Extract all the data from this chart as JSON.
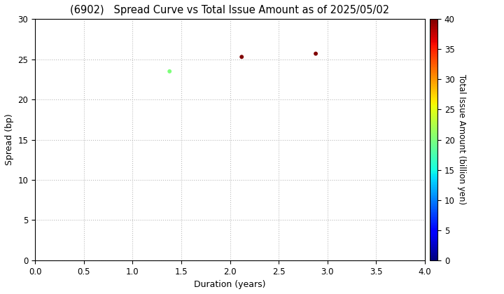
{
  "title": "(6902)   Spread Curve vs Total Issue Amount as of 2025/05/02",
  "xlabel": "Duration (years)",
  "ylabel": "Spread (bp)",
  "colorbar_label": "Total Issue Amount (billion yen)",
  "xlim": [
    0.0,
    4.0
  ],
  "ylim": [
    0,
    30
  ],
  "xticks": [
    0.0,
    0.5,
    1.0,
    1.5,
    2.0,
    2.5,
    3.0,
    3.5,
    4.0
  ],
  "yticks": [
    0,
    5,
    10,
    15,
    20,
    25,
    30
  ],
  "colorbar_min": 0,
  "colorbar_max": 40,
  "colorbar_ticks": [
    0,
    5,
    10,
    15,
    20,
    25,
    30,
    35,
    40
  ],
  "points": [
    {
      "duration": 1.38,
      "spread": 23.5,
      "amount": 20
    },
    {
      "duration": 2.12,
      "spread": 25.3,
      "amount": 40
    },
    {
      "duration": 2.88,
      "spread": 25.7,
      "amount": 40
    }
  ],
  "marker_size": 18,
  "background_color": "#ffffff",
  "grid_color": "#bbbbbb",
  "title_fontsize": 10.5,
  "axis_fontsize": 9,
  "tick_fontsize": 8.5,
  "colorbar_fontsize": 8.5
}
